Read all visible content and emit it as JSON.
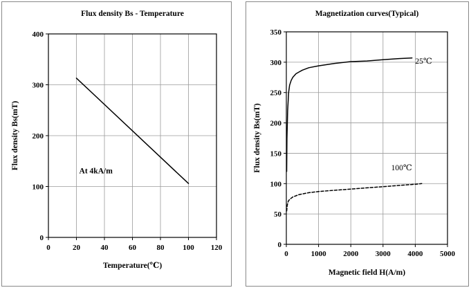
{
  "chart_data": [
    {
      "type": "line",
      "title": "Flux density Bs - Temperature",
      "xlabel": "Temperature(℃)",
      "ylabel": "Flux density Bs(mT)",
      "xlim": [
        0,
        120
      ],
      "ylim": [
        0,
        400
      ],
      "xticks": [
        0,
        20,
        40,
        60,
        80,
        100,
        120
      ],
      "yticks": [
        0,
        100,
        200,
        300,
        400
      ],
      "xtick_labels": [
        "0",
        "20",
        "40",
        "60",
        "80",
        "100",
        "120"
      ],
      "ytick_labels": [
        "0",
        "100",
        "200",
        "300",
        "400"
      ],
      "grid": true,
      "series": [
        {
          "name": "Bs",
          "style": "solid",
          "x": [
            20,
            100
          ],
          "y": [
            313,
            106
          ]
        }
      ],
      "annotations": [
        {
          "text": "At 4kA/m",
          "x": 22,
          "y": 131
        }
      ]
    },
    {
      "type": "line",
      "title": "Magnetization curves(Typical)",
      "xlabel": "Magnetic field H(A/m)",
      "ylabel": "Flux density Bs(mT)",
      "xlim": [
        0,
        5000
      ],
      "ylim": [
        0,
        350
      ],
      "xticks": [
        0,
        1000,
        2000,
        3000,
        4000,
        5000
      ],
      "yticks": [
        0,
        50,
        100,
        150,
        200,
        250,
        300,
        350
      ],
      "xtick_labels": [
        "0",
        "1000",
        "2000",
        "3000",
        "4000",
        "5000"
      ],
      "ytick_labels": [
        "0",
        "50",
        "100",
        "150",
        "200",
        "250",
        "300",
        "350"
      ],
      "grid": true,
      "series": [
        {
          "name": "25℃",
          "style": "solid",
          "x": [
            10,
            20,
            40,
            70,
            100,
            150,
            200,
            300,
            400,
            500,
            700,
            1000,
            1500,
            2000,
            2500,
            3000,
            3500,
            3900
          ],
          "y": [
            120,
            175,
            220,
            250,
            262,
            270,
            275,
            281,
            284,
            287,
            291,
            294,
            298,
            301,
            302,
            304,
            306,
            307
          ]
        },
        {
          "name": "100℃",
          "style": "dashed",
          "x": [
            10,
            30,
            60,
            100,
            200,
            400,
            700,
            1000,
            1500,
            2000,
            2500,
            3000,
            3500,
            4000,
            4200
          ],
          "y": [
            55,
            65,
            71,
            74,
            78,
            82,
            85,
            87,
            89,
            91,
            93,
            95,
            97,
            99,
            100
          ]
        }
      ],
      "annotations": [
        {
          "text": "25℃",
          "x": 4000,
          "y": 302
        },
        {
          "text": "100℃",
          "x": 3900,
          "y": 122
        }
      ]
    }
  ]
}
